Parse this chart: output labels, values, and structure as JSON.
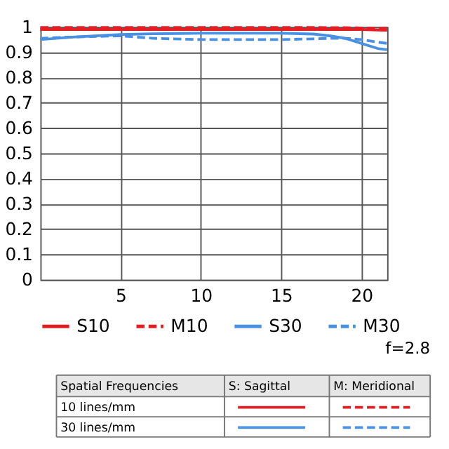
{
  "chart_data": {
    "type": "line",
    "xlim": [
      0,
      21.6
    ],
    "xticks": [
      5,
      10,
      15,
      20
    ],
    "ylim": [
      0,
      1
    ],
    "yticks": [
      0,
      0.1,
      0.2,
      0.3,
      0.4,
      0.5,
      0.6,
      0.7,
      0.8,
      0.9,
      1
    ],
    "grid": true,
    "legend": "bottom",
    "marker": "none",
    "x": [
      0,
      2,
      5,
      7,
      10,
      13,
      15,
      17,
      18,
      19,
      20,
      21,
      21.6
    ],
    "series": [
      {
        "name": "S10",
        "color": "#e31e24",
        "line_style": "solid",
        "values": [
          0.99,
          0.99,
          0.99,
          0.99,
          0.99,
          0.99,
          0.99,
          0.99,
          0.99,
          0.99,
          0.99,
          0.988,
          0.987
        ]
      },
      {
        "name": "M10",
        "color": "#e31e24",
        "line_style": "dashed",
        "values": [
          0.998,
          0.998,
          0.998,
          0.998,
          0.998,
          0.998,
          0.998,
          0.998,
          0.997,
          0.997,
          0.996,
          0.995,
          0.995
        ]
      },
      {
        "name": "S30",
        "color": "#4a90e2",
        "line_style": "solid",
        "values": [
          0.95,
          0.96,
          0.97,
          0.973,
          0.975,
          0.975,
          0.975,
          0.972,
          0.965,
          0.955,
          0.935,
          0.915,
          0.91
        ]
      },
      {
        "name": "M30",
        "color": "#4a90e2",
        "line_style": "dashed",
        "values": [
          0.955,
          0.96,
          0.965,
          0.955,
          0.95,
          0.95,
          0.95,
          0.953,
          0.955,
          0.955,
          0.95,
          0.94,
          0.935
        ]
      }
    ],
    "annotations": [
      "f=2.8",
      "Spatial Frequencies",
      "S: Sagittal",
      "M: Meridional",
      "10 lines/mm",
      "30 lines/mm"
    ]
  }
}
